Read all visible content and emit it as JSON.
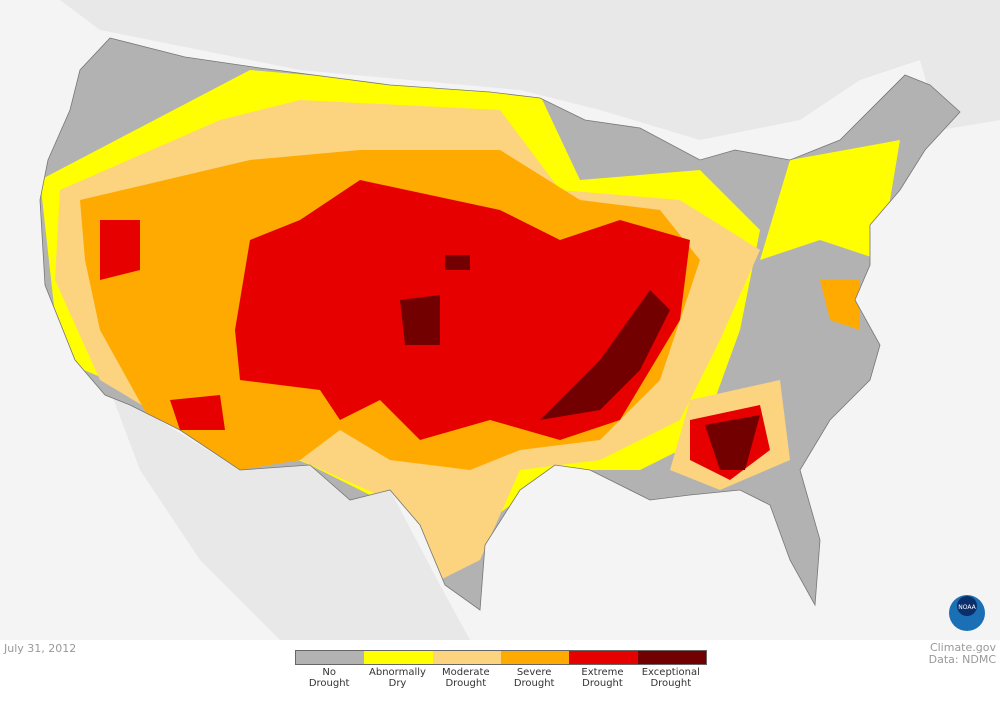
{
  "date": "July 31, 2012",
  "credit": {
    "site": "Climate.gov",
    "source": "Data: NDMC"
  },
  "logo": "NOAA",
  "legend": [
    {
      "label": "No\nDrought",
      "color": "#b2b2b2"
    },
    {
      "label": "Abnormally\nDry",
      "color": "#ffff00"
    },
    {
      "label": "Moderate\nDrought",
      "color": "#fcd37f"
    },
    {
      "label": "Severe\nDrought",
      "color": "#ffaa00"
    },
    {
      "label": "Extreme\nDrought",
      "color": "#e60000"
    },
    {
      "label": "Exceptional\nDrought",
      "color": "#730000"
    }
  ]
}
